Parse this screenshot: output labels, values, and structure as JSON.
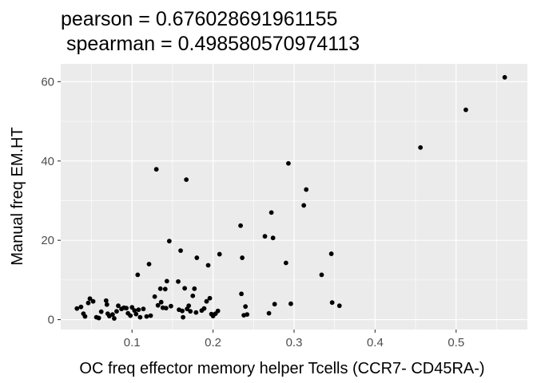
{
  "chart_data": {
    "type": "scatter",
    "title_lines": [
      "pearson = 0.676028691961155",
      " spearman = 0.498580570974113"
    ],
    "xlabel": "OC freq effector memory helper Tcells (CCR7- CD45RA-)",
    "ylabel": "Manual freq EM.HT",
    "xlim": [
      0.012,
      0.588
    ],
    "ylim": [
      -2.5,
      64.5
    ],
    "x_ticks": [
      0.1,
      0.2,
      0.3,
      0.4,
      0.5
    ],
    "x_tick_labels": [
      "0.1",
      "0.2",
      "0.3",
      "0.4",
      "0.5"
    ],
    "y_ticks": [
      0,
      20,
      40,
      60
    ],
    "y_tick_labels": [
      "0",
      "20",
      "40",
      "60"
    ],
    "grid": true,
    "point_color": "#000000",
    "panel_color": "#ebebeb",
    "points": [
      {
        "x": 0.032,
        "y": 2.8
      },
      {
        "x": 0.037,
        "y": 3.2
      },
      {
        "x": 0.04,
        "y": 1.5
      },
      {
        "x": 0.042,
        "y": 0.8
      },
      {
        "x": 0.046,
        "y": 4.2
      },
      {
        "x": 0.048,
        "y": 5.3
      },
      {
        "x": 0.052,
        "y": 4.6
      },
      {
        "x": 0.056,
        "y": 0.6
      },
      {
        "x": 0.059,
        "y": 0.4
      },
      {
        "x": 0.062,
        "y": 2.0
      },
      {
        "x": 0.068,
        "y": 4.8
      },
      {
        "x": 0.069,
        "y": 3.8
      },
      {
        "x": 0.07,
        "y": 1.5
      },
      {
        "x": 0.072,
        "y": 0.9
      },
      {
        "x": 0.076,
        "y": 1.3
      },
      {
        "x": 0.078,
        "y": 0.3
      },
      {
        "x": 0.081,
        "y": 2.1
      },
      {
        "x": 0.083,
        "y": 3.5
      },
      {
        "x": 0.087,
        "y": 2.7
      },
      {
        "x": 0.09,
        "y": 3.0
      },
      {
        "x": 0.093,
        "y": 2.9
      },
      {
        "x": 0.095,
        "y": 1.6
      },
      {
        "x": 0.098,
        "y": 1.0
      },
      {
        "x": 0.1,
        "y": 3.1
      },
      {
        "x": 0.103,
        "y": 2.3
      },
      {
        "x": 0.105,
        "y": 1.4
      },
      {
        "x": 0.107,
        "y": 11.3
      },
      {
        "x": 0.108,
        "y": 2.5
      },
      {
        "x": 0.11,
        "y": 0.6
      },
      {
        "x": 0.114,
        "y": 2.7
      },
      {
        "x": 0.118,
        "y": 0.8
      },
      {
        "x": 0.121,
        "y": 14.0
      },
      {
        "x": 0.123,
        "y": 1.0
      },
      {
        "x": 0.128,
        "y": 5.8
      },
      {
        "x": 0.13,
        "y": 37.9
      },
      {
        "x": 0.132,
        "y": 3.6
      },
      {
        "x": 0.135,
        "y": 7.8
      },
      {
        "x": 0.136,
        "y": 4.4
      },
      {
        "x": 0.138,
        "y": 3.0
      },
      {
        "x": 0.141,
        "y": 7.7
      },
      {
        "x": 0.142,
        "y": 2.9
      },
      {
        "x": 0.143,
        "y": 9.7
      },
      {
        "x": 0.146,
        "y": 19.8
      },
      {
        "x": 0.148,
        "y": 3.4
      },
      {
        "x": 0.157,
        "y": 9.6
      },
      {
        "x": 0.158,
        "y": 2.5
      },
      {
        "x": 0.16,
        "y": 17.4
      },
      {
        "x": 0.162,
        "y": 2.2
      },
      {
        "x": 0.163,
        "y": 0.6
      },
      {
        "x": 0.165,
        "y": 7.9
      },
      {
        "x": 0.167,
        "y": 35.3
      },
      {
        "x": 0.168,
        "y": 2.7
      },
      {
        "x": 0.17,
        "y": 3.5
      },
      {
        "x": 0.172,
        "y": 2.1
      },
      {
        "x": 0.175,
        "y": 6.0
      },
      {
        "x": 0.177,
        "y": 7.8
      },
      {
        "x": 0.179,
        "y": 1.8
      },
      {
        "x": 0.18,
        "y": 15.6
      },
      {
        "x": 0.186,
        "y": 2.3
      },
      {
        "x": 0.189,
        "y": 2.8
      },
      {
        "x": 0.192,
        "y": 4.6
      },
      {
        "x": 0.194,
        "y": 13.7
      },
      {
        "x": 0.196,
        "y": 5.4
      },
      {
        "x": 0.198,
        "y": 1.4
      },
      {
        "x": 0.2,
        "y": 0.9
      },
      {
        "x": 0.203,
        "y": 1.5
      },
      {
        "x": 0.206,
        "y": 2.2
      },
      {
        "x": 0.208,
        "y": 16.5
      },
      {
        "x": 0.234,
        "y": 23.7
      },
      {
        "x": 0.235,
        "y": 6.5
      },
      {
        "x": 0.236,
        "y": 15.6
      },
      {
        "x": 0.238,
        "y": 1.1
      },
      {
        "x": 0.24,
        "y": 3.3
      },
      {
        "x": 0.242,
        "y": 1.3
      },
      {
        "x": 0.264,
        "y": 21.0
      },
      {
        "x": 0.269,
        "y": 1.6
      },
      {
        "x": 0.272,
        "y": 27.0
      },
      {
        "x": 0.274,
        "y": 20.6
      },
      {
        "x": 0.276,
        "y": 3.9
      },
      {
        "x": 0.29,
        "y": 14.3
      },
      {
        "x": 0.293,
        "y": 39.4
      },
      {
        "x": 0.296,
        "y": 4.0
      },
      {
        "x": 0.312,
        "y": 28.8
      },
      {
        "x": 0.315,
        "y": 32.8
      },
      {
        "x": 0.334,
        "y": 11.3
      },
      {
        "x": 0.346,
        "y": 16.6
      },
      {
        "x": 0.347,
        "y": 4.3
      },
      {
        "x": 0.356,
        "y": 3.5
      },
      {
        "x": 0.456,
        "y": 43.4
      },
      {
        "x": 0.512,
        "y": 52.9
      },
      {
        "x": 0.56,
        "y": 61.1
      }
    ]
  }
}
